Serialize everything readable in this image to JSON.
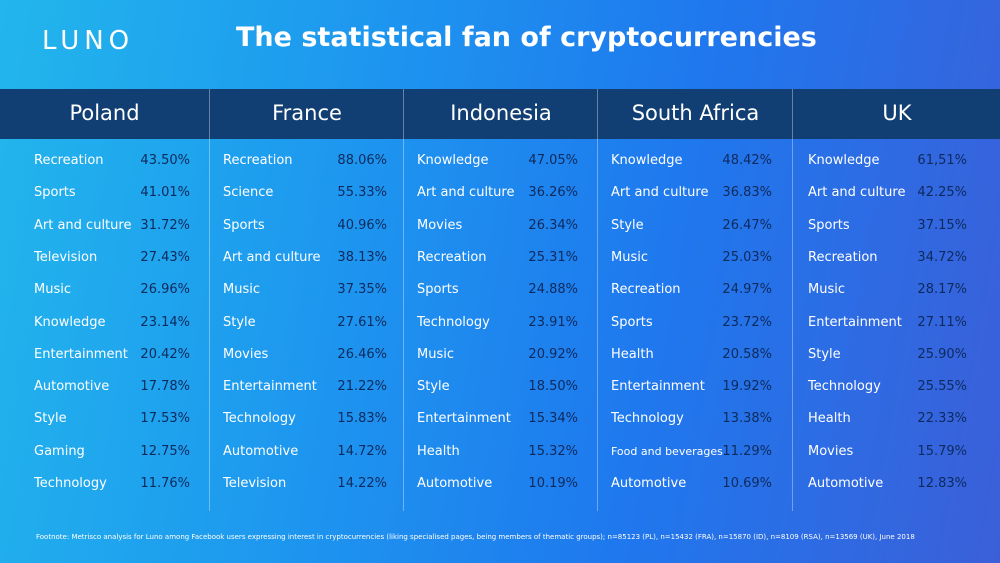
{
  "header": {
    "logo": "LUNO",
    "title": "The statistical fan of cryptocurrencies"
  },
  "chart_data": {
    "type": "table",
    "title": "The statistical fan of cryptocurrencies",
    "columns": [
      {
        "country": "Poland",
        "rows": [
          {
            "category": "Recreation",
            "value": "43.50%"
          },
          {
            "category": "Sports",
            "value": "41.01%"
          },
          {
            "category": "Art and culture",
            "value": "31.72%"
          },
          {
            "category": "Television",
            "value": "27.43%"
          },
          {
            "category": "Music",
            "value": "26.96%"
          },
          {
            "category": "Knowledge",
            "value": "23.14%"
          },
          {
            "category": "Entertainment",
            "value": "20.42%"
          },
          {
            "category": "Automotive",
            "value": "17.78%"
          },
          {
            "category": "Style",
            "value": "17.53%"
          },
          {
            "category": "Gaming",
            "value": "12.75%"
          },
          {
            "category": "Technology",
            "value": "11.76%"
          }
        ]
      },
      {
        "country": "France",
        "rows": [
          {
            "category": "Recreation",
            "value": "88.06%"
          },
          {
            "category": "Science",
            "value": "55.33%"
          },
          {
            "category": "Sports",
            "value": "40.96%"
          },
          {
            "category": "Art and culture",
            "value": "38.13%"
          },
          {
            "category": "Music",
            "value": "37.35%"
          },
          {
            "category": "Style",
            "value": "27.61%"
          },
          {
            "category": "Movies",
            "value": "26.46%"
          },
          {
            "category": "Entertainment",
            "value": "21.22%"
          },
          {
            "category": "Technology",
            "value": "15.83%"
          },
          {
            "category": "Automotive",
            "value": "14.72%"
          },
          {
            "category": "Television",
            "value": "14.22%"
          }
        ]
      },
      {
        "country": "Indonesia",
        "rows": [
          {
            "category": "Knowledge",
            "value": "47.05%"
          },
          {
            "category": "Art and culture",
            "value": "36.26%"
          },
          {
            "category": "Movies",
            "value": "26.34%"
          },
          {
            "category": "Recreation",
            "value": "25.31%"
          },
          {
            "category": "Sports",
            "value": "24.88%"
          },
          {
            "category": "Technology",
            "value": "23.91%"
          },
          {
            "category": "Music",
            "value": "20.92%"
          },
          {
            "category": "Style",
            "value": "18.50%"
          },
          {
            "category": "Entertainment",
            "value": "15.34%"
          },
          {
            "category": "Health",
            "value": "15.32%"
          },
          {
            "category": "Automotive",
            "value": "10.19%"
          }
        ]
      },
      {
        "country": "South Africa",
        "rows": [
          {
            "category": "Knowledge",
            "value": "48.42%"
          },
          {
            "category": "Art and culture",
            "value": "36.83%"
          },
          {
            "category": "Style",
            "value": "26.47%"
          },
          {
            "category": "Music",
            "value": "25.03%"
          },
          {
            "category": "Recreation",
            "value": "24.97%"
          },
          {
            "category": "Sports",
            "value": "23.72%"
          },
          {
            "category": "Health",
            "value": "20.58%"
          },
          {
            "category": "Entertainment",
            "value": "19.92%"
          },
          {
            "category": "Technology",
            "value": "13.38%"
          },
          {
            "category": "Food and beverages",
            "value": "11.29%"
          },
          {
            "category": "Automotive",
            "value": "10.69%"
          }
        ]
      },
      {
        "country": "UK",
        "rows": [
          {
            "category": "Knowledge",
            "value": "61,51%"
          },
          {
            "category": "Art and culture",
            "value": "42.25%"
          },
          {
            "category": "Sports",
            "value": "37.15%"
          },
          {
            "category": "Recreation",
            "value": "34.72%"
          },
          {
            "category": "Music",
            "value": "28.17%"
          },
          {
            "category": "Entertainment",
            "value": "27.11%"
          },
          {
            "category": "Style",
            "value": "25.90%"
          },
          {
            "category": "Technology",
            "value": "25.55%"
          },
          {
            "category": "Health",
            "value": "22.33%"
          },
          {
            "category": "Movies",
            "value": "15.79%"
          },
          {
            "category": "Automotive",
            "value": "12.83%"
          }
        ]
      }
    ]
  },
  "footnote": "Footnote: Metrisco analysis for Luno among Facebook users expressing interest in cryptocurrencies (liking specialised pages, being members of thematic groups); n=85123 (PL), n=15432 (FRA), n=15870 (ID), n=8109 (RSA), n=13569 (UK), June 2018",
  "colors": {
    "header_band": "#123f73",
    "value_text": "#0e2a5c",
    "background_start": "#22b6ec",
    "background_end": "#3b5fd9"
  }
}
